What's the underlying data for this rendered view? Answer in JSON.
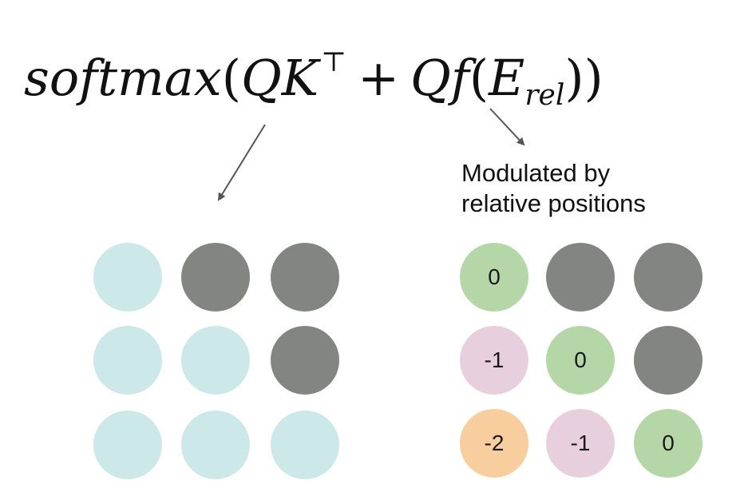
{
  "formula": {
    "softmax": "softmax",
    "open1": "(",
    "Q1": "Q",
    "K": "K",
    "transpose": "⊤",
    "plus": "+",
    "Q2": "Q",
    "f": "f",
    "open2": "(",
    "E": "E",
    "rel": "rel",
    "close": "))"
  },
  "caption": {
    "line1": "Modulated by",
    "line2": "relative positions"
  },
  "colors": {
    "mask": "#838582",
    "left_active": "#cce8e8",
    "zero": "#b5d6a7",
    "minus_one": "#e8cfde",
    "minus_two": "#f8ce9e",
    "arrow": "#555555"
  },
  "left_grid": [
    [
      "active",
      "masked",
      "masked"
    ],
    [
      "active",
      "active",
      "masked"
    ],
    [
      "active",
      "active",
      "active"
    ]
  ],
  "right_grid": [
    [
      "0",
      null,
      null
    ],
    [
      "-1",
      "0",
      null
    ],
    [
      "-2",
      "-1",
      "0"
    ]
  ]
}
